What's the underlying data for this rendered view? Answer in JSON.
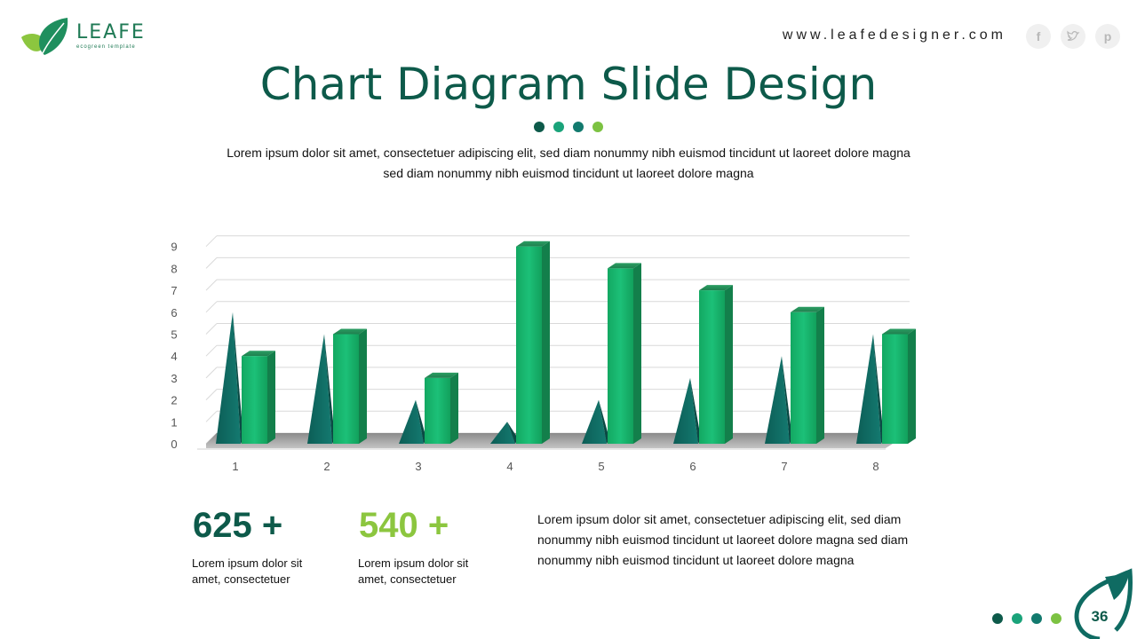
{
  "brand": {
    "name": "LEAFE",
    "tagline": "ecogreen template"
  },
  "header": {
    "website": "www.leafedesigner.com",
    "social_icons": [
      "facebook-icon",
      "twitter-icon",
      "pinterest-icon"
    ]
  },
  "slide": {
    "title": "Chart Diagram Slide Design",
    "description_line1": "Lorem ipsum dolor sit amet, consectetuer adipiscing elit, sed diam nonummy  nibh euismod tincidunt ut laoreet dolore magna",
    "description_line2": "sed diam nonummy  nibh euismod tincidunt ut laoreet dolore magna",
    "dot_colors": [
      "#0d5a4a",
      "#1aa37a",
      "#127a6e",
      "#7cc242"
    ]
  },
  "stats": [
    {
      "value": "625 +",
      "label": "Lorem ipsum dolor sit amet, consectetuer",
      "color": "#0d5a4a"
    },
    {
      "value": "540 +",
      "label": "Lorem ipsum dolor sit amet, consectetuer",
      "color": "#8cc63f"
    }
  ],
  "paragraph": "Lorem ipsum dolor sit amet, consectetuer adipiscing elit, sed diam nonummy  nibh euismod tincidunt ut laoreet dolore magna sed diam nonummy  nibh euismod tincidunt ut laoreet dolore magna",
  "page_number": "36",
  "chart_data": {
    "type": "bar",
    "categories": [
      "1",
      "2",
      "3",
      "4",
      "5",
      "6",
      "7",
      "8"
    ],
    "series": [
      {
        "values": [
          6,
          5,
          2,
          1,
          2,
          3,
          4,
          5
        ],
        "color": "#0f6b62",
        "shape": "cone"
      },
      {
        "values": [
          4,
          5,
          3,
          9,
          8,
          7,
          6,
          5
        ],
        "color": "#1bb36f",
        "shape": "box"
      }
    ],
    "ylim": [
      0,
      9
    ],
    "yticks": [
      "0",
      "1",
      "2",
      "3",
      "4",
      "5",
      "6",
      "7",
      "8",
      "9"
    ],
    "grid": true,
    "legend": "none"
  }
}
